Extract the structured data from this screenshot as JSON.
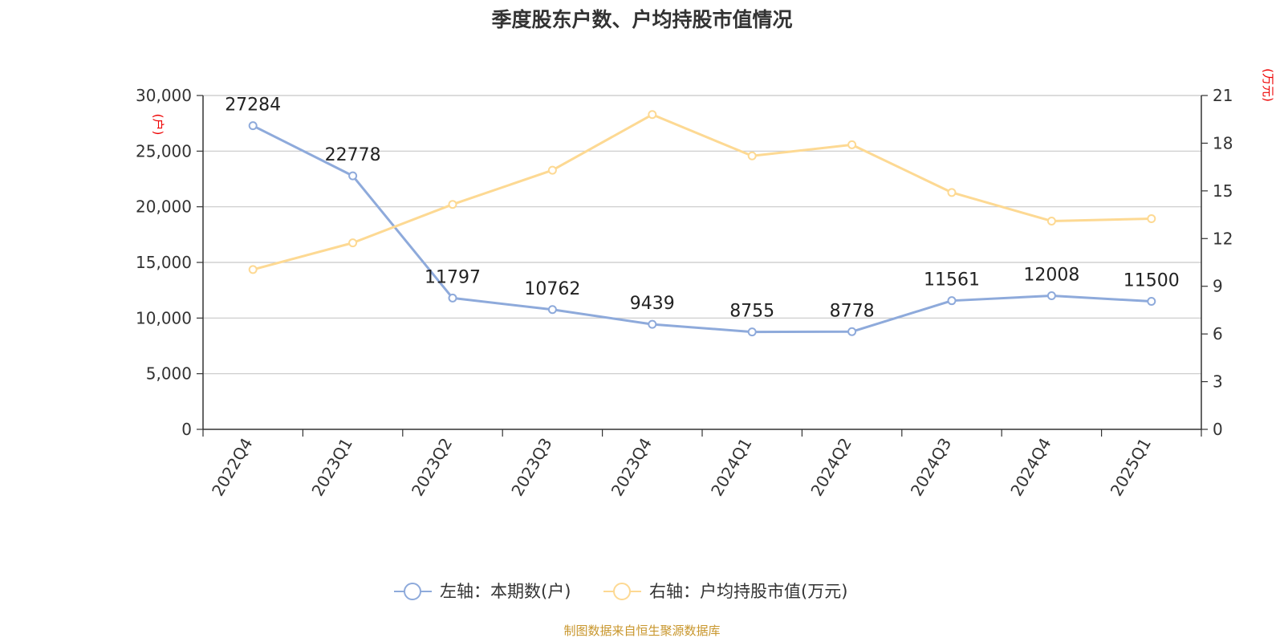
{
  "chart_data": {
    "type": "line",
    "title": "季度股东户数、户均持股市值情况",
    "categories": [
      "2022Q4",
      "2023Q1",
      "2023Q2",
      "2023Q3",
      "2023Q4",
      "2024Q1",
      "2024Q2",
      "2024Q3",
      "2024Q4",
      "2025Q1"
    ],
    "left_axis": {
      "unit": "(户)",
      "ylim": [
        0,
        30000
      ],
      "ticks": [
        "0",
        "5,000",
        "10,000",
        "15,000",
        "20,000",
        "25,000",
        "30,000"
      ]
    },
    "right_axis": {
      "unit": "(万元)",
      "ylim": [
        0,
        21
      ],
      "ticks": [
        "0",
        "3",
        "6",
        "9",
        "12",
        "15",
        "18",
        "21"
      ]
    },
    "series": [
      {
        "name": "左轴：本期数(户)",
        "axis": "left",
        "color": "#8eaadb",
        "values": [
          27284,
          22778,
          11797,
          10762,
          9439,
          8755,
          8778,
          11561,
          12008,
          11500
        ],
        "labels": [
          "27284",
          "22778",
          "11797",
          "10762",
          "9439",
          "8755",
          "8778",
          "11561",
          "12008",
          "11500"
        ]
      },
      {
        "name": "右轴：户均持股市值(万元)",
        "axis": "right",
        "color": "#fdd993",
        "values": [
          10.05,
          11.73,
          14.15,
          16.3,
          19.8,
          17.2,
          17.9,
          14.9,
          13.1,
          13.25
        ]
      }
    ],
    "grid": true,
    "legend_position": "bottom-center",
    "source": "制图数据来自恒生聚源数据库"
  }
}
